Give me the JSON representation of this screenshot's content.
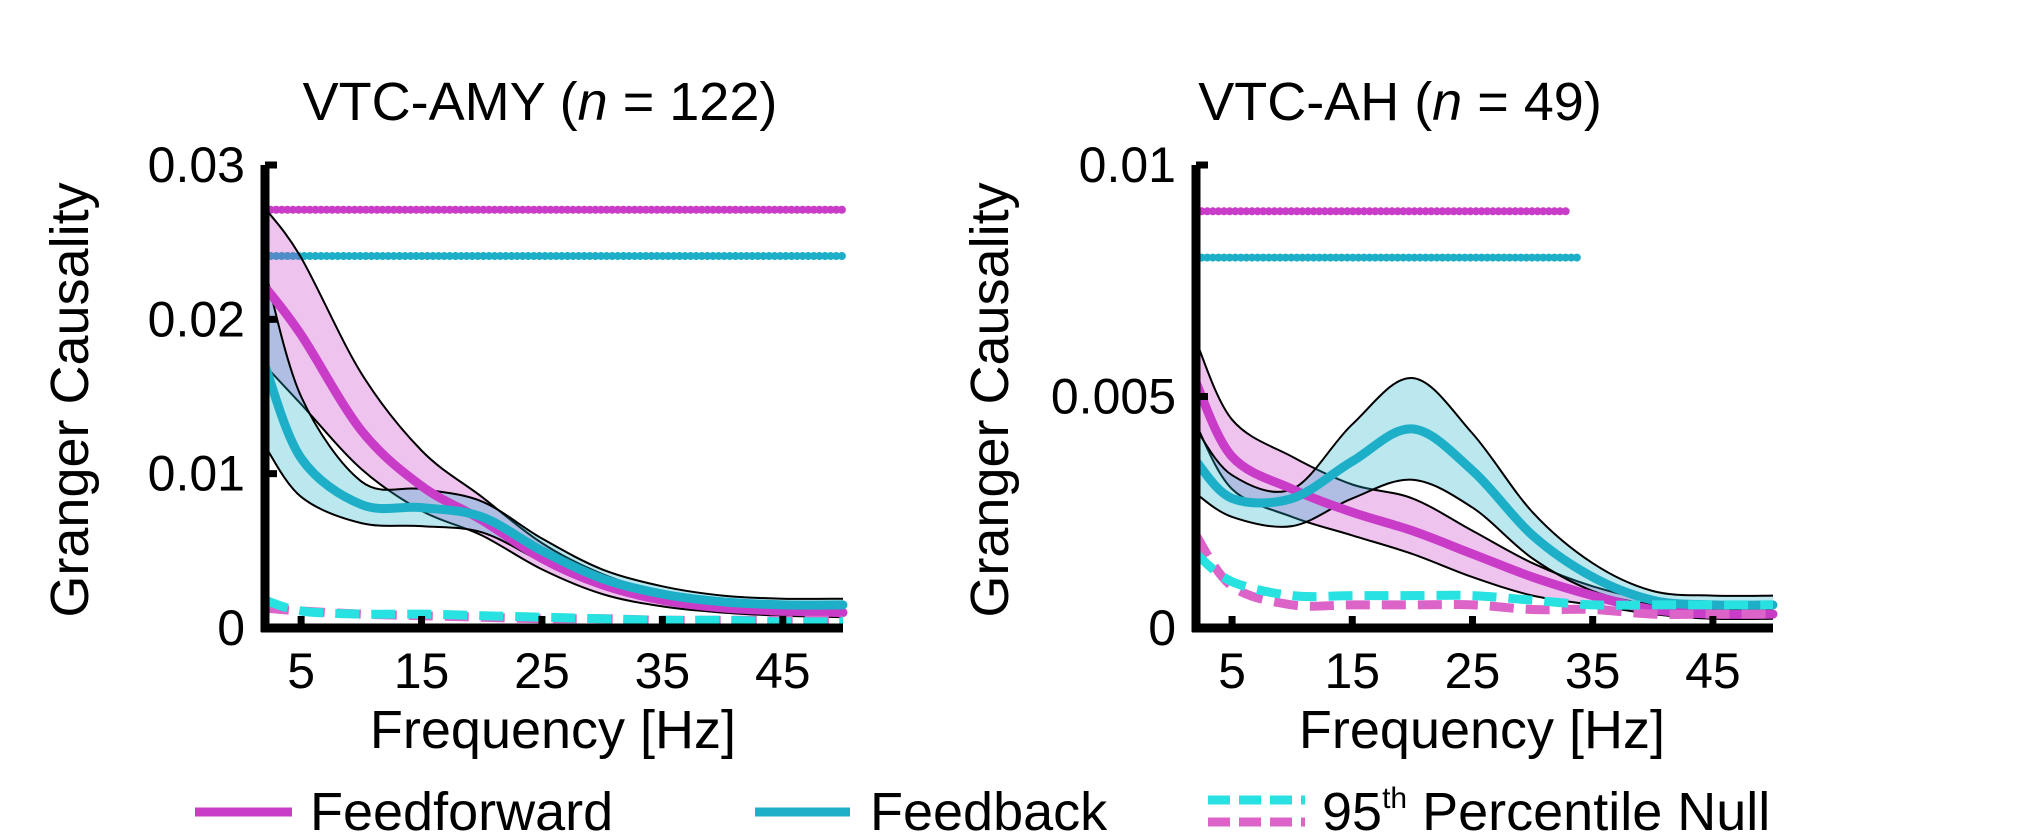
{
  "chart_data": [
    {
      "type": "line",
      "title_prefix": "VTC-AMY (",
      "title_n": "n",
      "title_suffix": " = 122)",
      "xlabel": "Frequency [Hz]",
      "ylabel": "Granger Causality",
      "xlim": [
        2,
        50
      ],
      "ylim": [
        0,
        0.03
      ],
      "xticks": [
        5,
        15,
        25,
        35,
        45
      ],
      "yticks": [
        0,
        0.01,
        0.02,
        0.03
      ],
      "ytick_labels": [
        "0",
        "0.01",
        "0.02",
        "0.03"
      ],
      "significance_lines": [
        {
          "series": "Feedforward",
          "y": 0.0271,
          "x_start": 2,
          "x_end": 50,
          "color": "#C83CC8"
        },
        {
          "series": "Feedback",
          "y": 0.0241,
          "x_start": 2,
          "x_end": 50,
          "color": "#1EAFC8"
        }
      ],
      "x": [
        2,
        5,
        10,
        15,
        20,
        25,
        30,
        35,
        40,
        45,
        50
      ],
      "series": [
        {
          "name": "Feedforward",
          "color": "#C83CC8",
          "values": [
            0.0221,
            0.019,
            0.0128,
            0.0092,
            0.007,
            0.0045,
            0.0028,
            0.0018,
            0.0013,
            0.0011,
            0.001
          ],
          "upper": [
            0.0272,
            0.024,
            0.0165,
            0.0115,
            0.0085,
            0.0055,
            0.0035,
            0.0023,
            0.0017,
            0.0014,
            0.0013
          ],
          "lower": [
            0.017,
            0.0145,
            0.0103,
            0.0076,
            0.006,
            0.0038,
            0.0022,
            0.0014,
            0.001,
            0.0008,
            0.0007
          ]
        },
        {
          "name": "Feedback",
          "color": "#1EAFC8",
          "values": [
            0.017,
            0.011,
            0.008,
            0.0078,
            0.0072,
            0.005,
            0.0032,
            0.0022,
            0.0017,
            0.0015,
            0.0015
          ],
          "upper": [
            0.0232,
            0.015,
            0.0095,
            0.009,
            0.0082,
            0.0058,
            0.0038,
            0.0027,
            0.0021,
            0.0019,
            0.0019
          ],
          "lower": [
            0.0118,
            0.0085,
            0.0068,
            0.0066,
            0.0062,
            0.0043,
            0.0026,
            0.0018,
            0.0014,
            0.0012,
            0.0012
          ]
        },
        {
          "name": "Feedforward null",
          "color": "#DC64C8",
          "dashed": true,
          "values": [
            0.0013,
            0.0011,
            0.0009,
            0.0008,
            0.0007,
            0.0006,
            0.0006,
            0.0005,
            0.0005,
            0.0005,
            0.0005
          ]
        },
        {
          "name": "Feedback null",
          "color": "#28E1E1",
          "dashed": true,
          "values": [
            0.0018,
            0.0011,
            0.0009,
            0.0009,
            0.0008,
            0.0007,
            0.0006,
            0.0005,
            0.0005,
            0.0004,
            0.0004
          ]
        }
      ]
    },
    {
      "type": "line",
      "title_prefix": "VTC-AH (",
      "title_n": "n",
      "title_suffix": " = 49)",
      "xlabel": "Frequency [Hz]",
      "ylabel": "Granger Causality",
      "xlim": [
        2,
        50
      ],
      "ylim": [
        0,
        0.01
      ],
      "xticks": [
        5,
        15,
        25,
        35,
        45
      ],
      "yticks": [
        0,
        0.005,
        0.01
      ],
      "ytick_labels": [
        "0",
        "0.005",
        "0.01"
      ],
      "significance_lines": [
        {
          "series": "Feedforward",
          "y": 0.009,
          "x_start": 2,
          "x_end": 33,
          "color": "#C83CC8"
        },
        {
          "series": "Feedback",
          "y": 0.008,
          "x_start": 2,
          "x_end": 34,
          "color": "#1EAFC8"
        }
      ],
      "x": [
        2,
        5,
        10,
        15,
        20,
        25,
        30,
        35,
        40,
        45,
        50
      ],
      "series": [
        {
          "name": "Feedforward",
          "color": "#C83CC8",
          "values": [
            0.0053,
            0.0037,
            0.003,
            0.0025,
            0.0021,
            0.0016,
            0.0011,
            0.0007,
            0.0004,
            0.0003,
            0.0003
          ],
          "upper": [
            0.0062,
            0.0045,
            0.0037,
            0.0031,
            0.0028,
            0.0021,
            0.0014,
            0.0009,
            0.0006,
            0.0005,
            0.0005
          ],
          "lower": [
            0.0044,
            0.003,
            0.0024,
            0.002,
            0.0016,
            0.0011,
            0.0007,
            0.0005,
            0.0003,
            0.0002,
            0.0002
          ]
        },
        {
          "name": "Feedback",
          "color": "#1EAFC8",
          "values": [
            0.0036,
            0.0028,
            0.0028,
            0.0036,
            0.0043,
            0.0034,
            0.002,
            0.0011,
            0.0006,
            0.0005,
            0.0005
          ],
          "upper": [
            0.0043,
            0.0033,
            0.003,
            0.0044,
            0.0054,
            0.0042,
            0.0025,
            0.0014,
            0.0008,
            0.0007,
            0.0007
          ],
          "lower": [
            0.0029,
            0.0024,
            0.0022,
            0.0028,
            0.0032,
            0.0026,
            0.0015,
            0.0008,
            0.0005,
            0.0004,
            0.0004
          ]
        },
        {
          "name": "Feedforward null",
          "color": "#DC64C8",
          "dashed": true,
          "values": [
            0.002,
            0.0009,
            0.0005,
            0.0005,
            0.0005,
            0.0005,
            0.0004,
            0.0004,
            0.0003,
            0.0003,
            0.0003
          ]
        },
        {
          "name": "Feedback null",
          "color": "#28E1E1",
          "dashed": true,
          "values": [
            0.0016,
            0.001,
            0.0007,
            0.0007,
            0.0007,
            0.0007,
            0.0006,
            0.0005,
            0.0005,
            0.0005,
            0.0005
          ]
        }
      ]
    }
  ],
  "legend": {
    "items": [
      {
        "label": "Feedforward",
        "color": "#C83CC8"
      },
      {
        "label": "Feedback",
        "color": "#1EAFC8"
      },
      {
        "label_prefix": "95",
        "label_sup": "th",
        "label_suffix": " Percentile Null",
        "colors": [
          "#28E1E1",
          "#DC64C8"
        ]
      }
    ]
  }
}
